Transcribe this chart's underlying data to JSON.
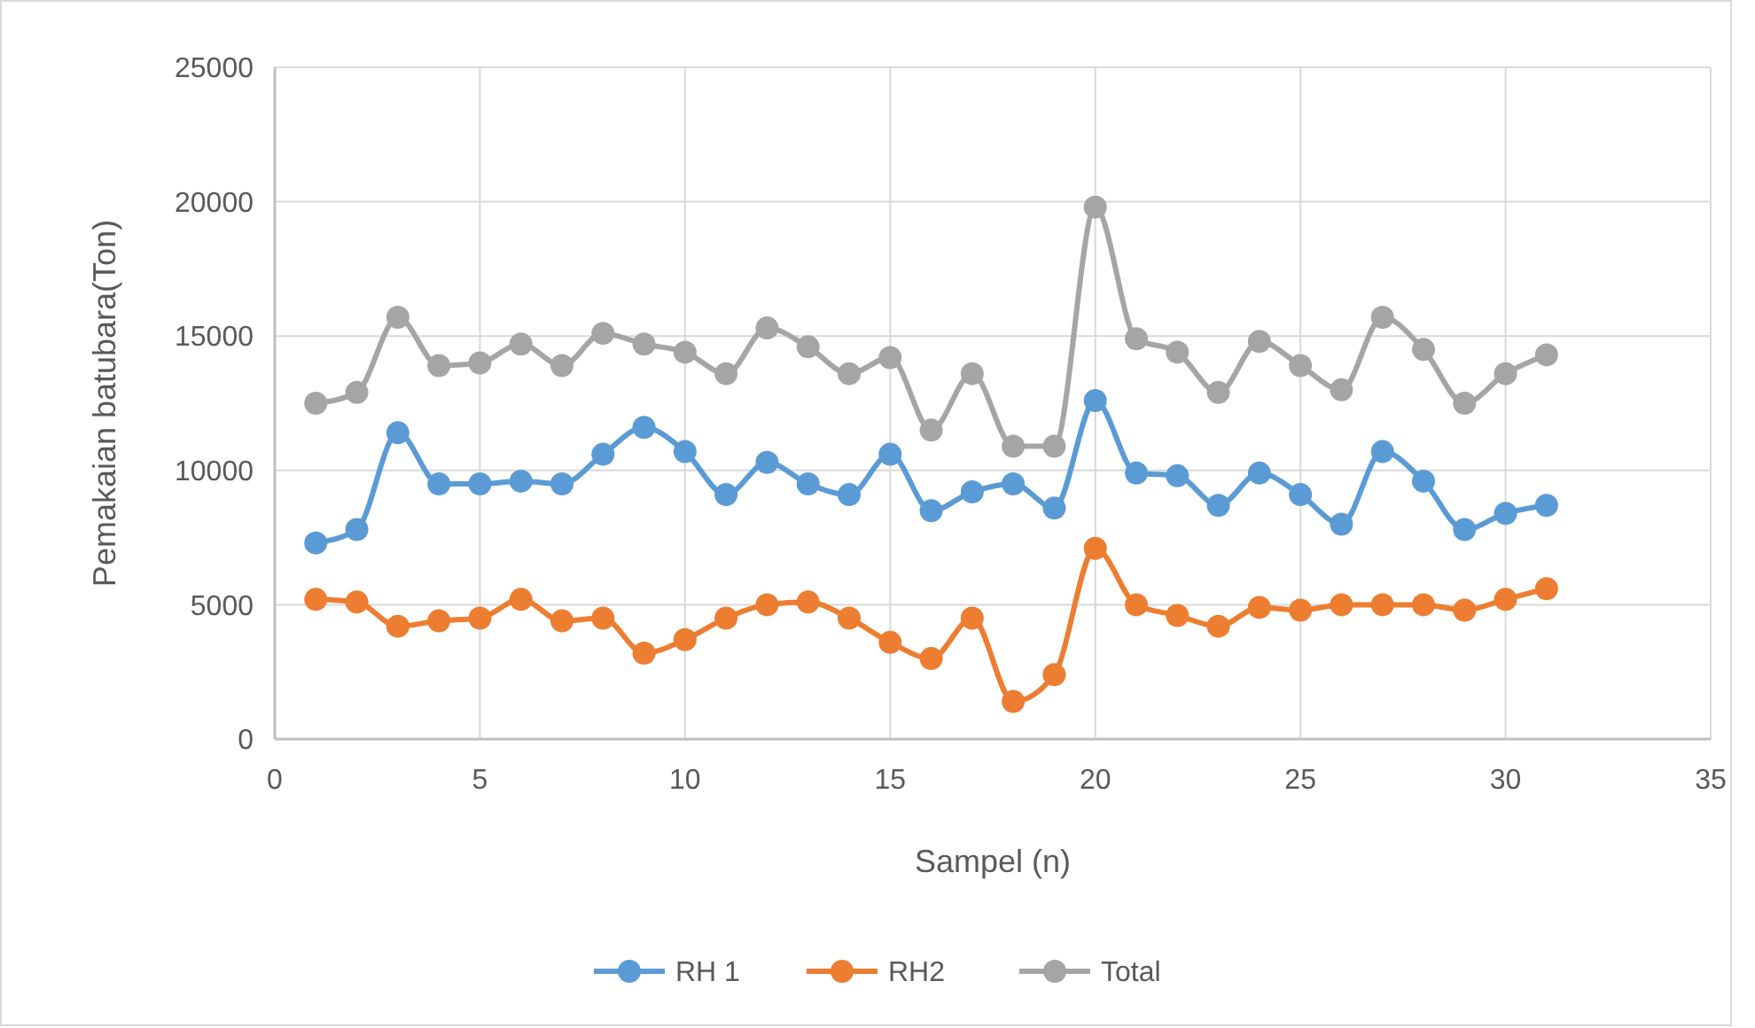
{
  "chart_data": {
    "type": "line",
    "xlabel": "Sampel (n)",
    "ylabel": "Pemakaian batubara(Ton)",
    "x": [
      1,
      2,
      3,
      4,
      5,
      6,
      7,
      8,
      9,
      10,
      11,
      12,
      13,
      14,
      15,
      16,
      17,
      18,
      19,
      20,
      21,
      22,
      23,
      24,
      25,
      26,
      27,
      28,
      29,
      30,
      31
    ],
    "xlim": [
      0,
      35
    ],
    "xticks": [
      0,
      5,
      10,
      15,
      20,
      25,
      30,
      35
    ],
    "ylim": [
      0,
      25000
    ],
    "yticks": [
      0,
      5000,
      10000,
      15000,
      20000,
      25000
    ],
    "grid": true,
    "legend": "bottom",
    "marker": "circle",
    "line_style": "solid",
    "series": [
      {
        "name": "RH 1",
        "color": "#5b9bd5",
        "values": [
          7300,
          7800,
          11400,
          9500,
          9500,
          9600,
          9500,
          10600,
          11600,
          10700,
          9100,
          10300,
          9500,
          9100,
          10600,
          8500,
          9200,
          9500,
          8600,
          12600,
          9900,
          9800,
          8700,
          9900,
          9100,
          8000,
          10700,
          9600,
          7800,
          8400,
          8700
        ]
      },
      {
        "name": "RH2",
        "color": "#ed7d31",
        "values": [
          5200,
          5100,
          4200,
          4400,
          4500,
          5200,
          4400,
          4500,
          3200,
          3700,
          4500,
          5000,
          5100,
          4500,
          3600,
          3000,
          4500,
          1400,
          2400,
          7100,
          5000,
          4600,
          4200,
          4900,
          4800,
          5000,
          5000,
          5000,
          4800,
          5200,
          5600
        ]
      },
      {
        "name": "Total",
        "color": "#a5a5a5",
        "values": [
          12500,
          12900,
          15700,
          13900,
          14000,
          14700,
          13900,
          15100,
          14700,
          14400,
          13600,
          15300,
          14600,
          13600,
          14200,
          11500,
          13600,
          10900,
          10900,
          19800,
          14900,
          14400,
          12900,
          14800,
          13900,
          13000,
          15700,
          14500,
          12500,
          13600,
          14300
        ]
      }
    ]
  }
}
